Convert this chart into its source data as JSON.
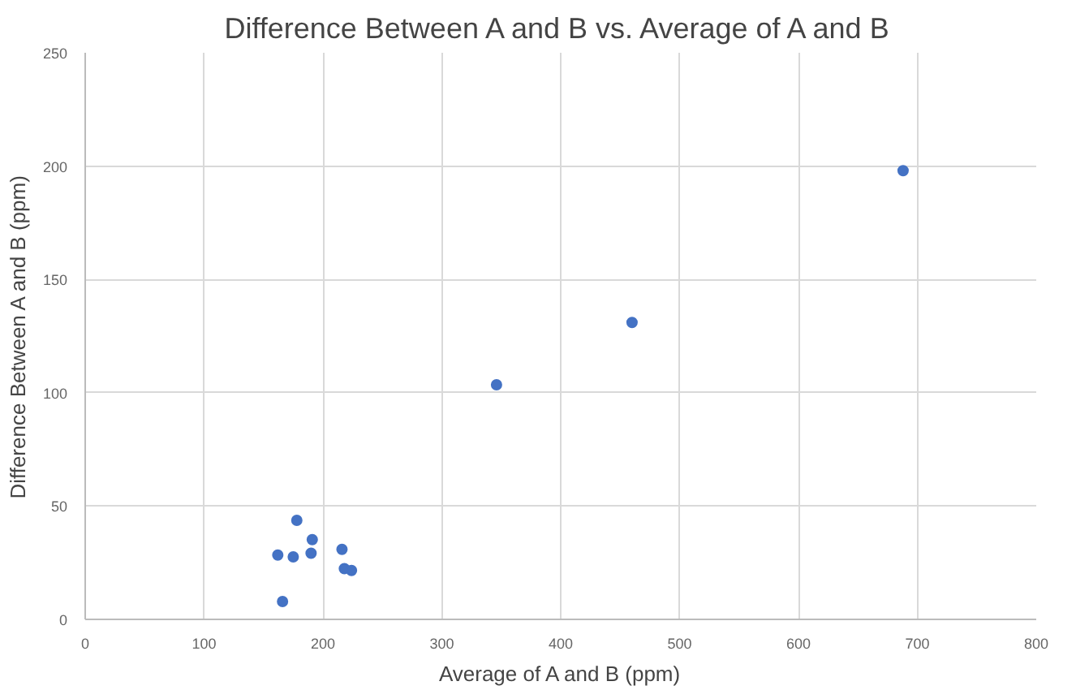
{
  "chart_data": {
    "type": "scatter",
    "title": "Difference Between A and B vs. Average of A and B",
    "xlabel": "Average of A and B (ppm)",
    "ylabel": "Difference Between A and B (ppm)",
    "x": [
      178,
      191,
      162,
      175,
      190,
      216,
      218,
      224,
      166,
      346,
      460,
      688
    ],
    "series": [
      {
        "color": "#4472c4",
        "values": [
          43.7,
          35.2,
          28.4,
          27.6,
          29.2,
          30.9,
          22.4,
          21.6,
          7.9,
          103.5,
          131,
          198
        ]
      }
    ],
    "xlim": [
      0,
      800
    ],
    "xticks": [
      0,
      100,
      200,
      300,
      400,
      500,
      600,
      700,
      800
    ],
    "ylim": [
      0,
      250
    ],
    "yticks": [
      0,
      50,
      100,
      150,
      200,
      250
    ],
    "grid": true,
    "marker": "circle"
  }
}
